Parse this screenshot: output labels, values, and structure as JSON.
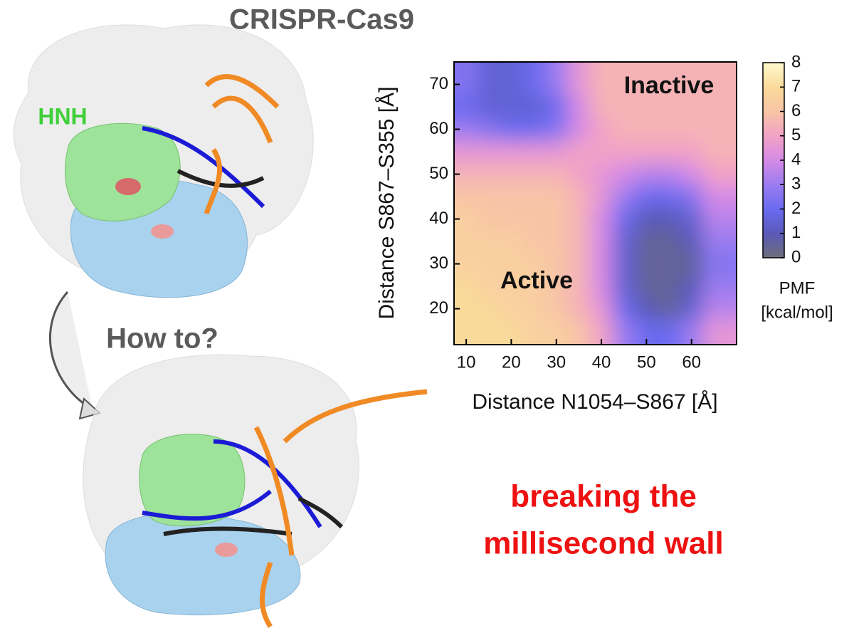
{
  "chart_data": {
    "type": "contour",
    "title": "CRISPR-Cas9",
    "domain_label": "HNH",
    "question": "How to?",
    "slogan": [
      "breaking the",
      "millisecond wall"
    ],
    "x_label": "Distance N1054–S867 [Å]",
    "y_label": "Distance S867–S355 [Å]",
    "annotations": [
      "Inactive",
      "Active"
    ],
    "colorbar_label": [
      "PMF",
      "[kcal/mol]"
    ],
    "xlim": [
      7.3,
      70
    ],
    "ylim": [
      12,
      75
    ],
    "xticks": [
      10,
      20,
      30,
      40,
      50,
      60
    ],
    "yticks": [
      20,
      30,
      40,
      50,
      60,
      70
    ],
    "zlim": [
      0,
      8
    ],
    "zticks": [
      0,
      1,
      2,
      3,
      4,
      5,
      6,
      7,
      8
    ],
    "colorscale": [
      "#6e6e7a",
      "#5a5ab8",
      "#6a6af0",
      "#9a7cf0",
      "#d58ae6",
      "#f2a2c6",
      "#f8c4a6",
      "#f9da9a",
      "#fff9cc"
    ],
    "x": [
      10,
      15,
      20,
      25,
      30,
      35,
      40,
      45,
      50,
      55,
      60,
      65
    ],
    "y": [
      70,
      65,
      60,
      55,
      50,
      45,
      40,
      35,
      30,
      25,
      20,
      15
    ],
    "z": [
      [
        2.5,
        1.5,
        1.5,
        2,
        3,
        4.5,
        5.5,
        5.5,
        5.5,
        5.5,
        5.5,
        5.5
      ],
      [
        2,
        1.5,
        1.5,
        1.5,
        2,
        4,
        5.5,
        5.5,
        5.5,
        5.5,
        5.5,
        5.5
      ],
      [
        3,
        2.5,
        2,
        2,
        2.5,
        4,
        5,
        5.5,
        5.5,
        5.5,
        5.5,
        5.5
      ],
      [
        4.5,
        4.5,
        4.5,
        4.5,
        4.5,
        5,
        5,
        5,
        5,
        5,
        5,
        5.5
      ],
      [
        5.5,
        5.5,
        5.5,
        5.5,
        5.5,
        5,
        4.5,
        4,
        3.5,
        3.5,
        4,
        5
      ],
      [
        6,
        6,
        6,
        6,
        6,
        5.5,
        4.5,
        3,
        2,
        2,
        2.5,
        4
      ],
      [
        6.5,
        6,
        6,
        6,
        6,
        5.5,
        4,
        2,
        1,
        1,
        1.5,
        3.5
      ],
      [
        6.5,
        6.5,
        6.5,
        6,
        6,
        5.5,
        4,
        1.5,
        0.5,
        0.5,
        1,
        3
      ],
      [
        6.5,
        6.5,
        6.5,
        6.5,
        6,
        5.5,
        4,
        1.5,
        0.5,
        0.5,
        0.5,
        2.5
      ],
      [
        7,
        6.5,
        6.5,
        6.5,
        6,
        5.5,
        4,
        1.5,
        0.5,
        0.5,
        1,
        3
      ],
      [
        7,
        7,
        6.5,
        6.5,
        6,
        5.5,
        4.5,
        2,
        1,
        0.5,
        1.5,
        3.5
      ],
      [
        7,
        7,
        7,
        6.5,
        6.5,
        6,
        5,
        3,
        2,
        2,
        3,
        4.5
      ]
    ]
  }
}
